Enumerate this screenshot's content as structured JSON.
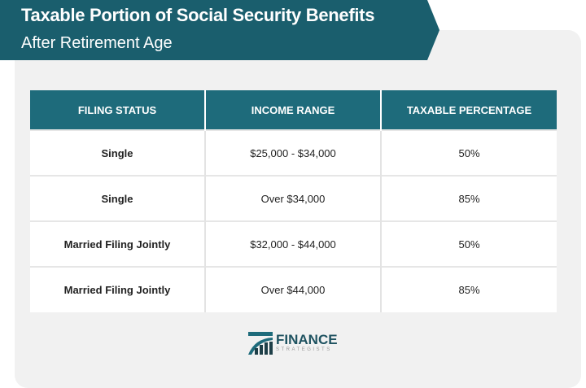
{
  "header": {
    "title": "Taxable Portion of Social Security Benefits",
    "subtitle": "After Retirement Age"
  },
  "table": {
    "columns": [
      "FILING STATUS",
      "INCOME RANGE",
      "TAXABLE PERCENTAGE"
    ],
    "rows": [
      [
        "Single",
        "$25,000 - $34,000",
        "50%"
      ],
      [
        "Single",
        "Over $34,000",
        "85%"
      ],
      [
        "Married Filing Jointly",
        "$32,000 - $44,000",
        "50%"
      ],
      [
        "Married Filing Jointly",
        "Over $44,000",
        "85%"
      ]
    ]
  },
  "logo": {
    "name": "FINANCE",
    "sub": "STRATEGISTS"
  },
  "colors": {
    "banner": "#1a5e6d",
    "header": "#1e6b7b",
    "panel": "#f1f1f1"
  }
}
